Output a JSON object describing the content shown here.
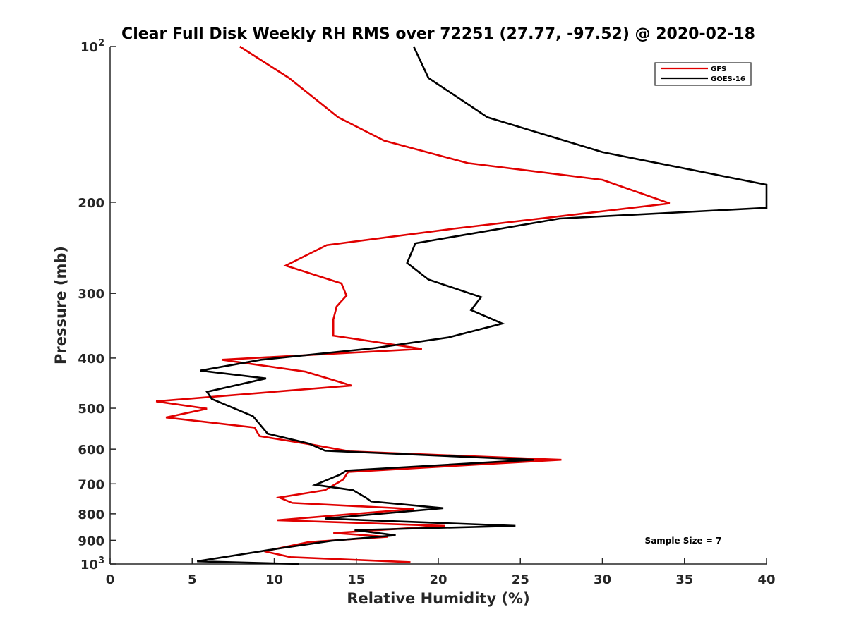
{
  "chart_data": {
    "type": "line",
    "title": "Clear Full Disk Weekly RH RMS over 72251 (27.77, -97.52) @ 2020-02-18",
    "xlabel": "Relative Humidity (%)",
    "ylabel": "Pressure (mb)",
    "xlim": [
      0,
      40
    ],
    "ylim": [
      100,
      1000
    ],
    "y_scale": "log",
    "y_reversed": true,
    "grid": false,
    "legend_position": "top-right",
    "x_ticks": [
      "0",
      "5",
      "10",
      "15",
      "20",
      "25",
      "30",
      "35",
      "40"
    ],
    "y_ticks": [
      {
        "value": 100,
        "base": "10",
        "exp": "2"
      },
      {
        "value": 200,
        "label": "200"
      },
      {
        "value": 300,
        "label": "300"
      },
      {
        "value": 400,
        "label": "400"
      },
      {
        "value": 500,
        "label": "500"
      },
      {
        "value": 600,
        "label": "600"
      },
      {
        "value": 700,
        "label": "700"
      },
      {
        "value": 800,
        "label": "800"
      },
      {
        "value": 900,
        "label": "900"
      },
      {
        "value": 1000,
        "base": "10",
        "exp": "3"
      }
    ],
    "annotation": "Sample Size = 7",
    "series": [
      {
        "name": "GFS",
        "color": "#e00000",
        "points": [
          [
            7.9,
            100
          ],
          [
            10.9,
            115
          ],
          [
            13.9,
            137
          ],
          [
            16.7,
            152
          ],
          [
            21.8,
            168
          ],
          [
            30,
            181
          ],
          [
            34.1,
            201
          ],
          [
            20.9,
            225
          ],
          [
            13.2,
            242
          ],
          [
            10.7,
            265
          ],
          [
            14.1,
            287
          ],
          [
            14.4,
            303
          ],
          [
            13.8,
            318
          ],
          [
            13.6,
            337
          ],
          [
            13.6,
            362
          ],
          [
            19.0,
            384
          ],
          [
            6.8,
            403
          ],
          [
            11.9,
            425
          ],
          [
            14.7,
            452
          ],
          [
            2.8,
            485
          ],
          [
            5.9,
            501
          ],
          [
            3.4,
            521
          ],
          [
            8.8,
            545
          ],
          [
            9.1,
            566
          ],
          [
            12.3,
            588
          ],
          [
            14.6,
            606
          ],
          [
            27.5,
            629
          ],
          [
            14.5,
            664
          ],
          [
            14.2,
            687
          ],
          [
            13.1,
            720
          ],
          [
            10.3,
            744
          ],
          [
            11.1,
            762
          ],
          [
            18.5,
            783
          ],
          [
            10.2,
            823
          ],
          [
            20.4,
            844
          ],
          [
            13.6,
            871
          ],
          [
            16.9,
            886
          ],
          [
            12.1,
            907
          ],
          [
            9.4,
            945
          ],
          [
            11.0,
            970
          ],
          [
            18.3,
            992
          ]
        ]
      },
      {
        "name": "GOES-16",
        "color": "#000000",
        "points": [
          [
            18.5,
            100
          ],
          [
            19.4,
            115
          ],
          [
            23.0,
            137
          ],
          [
            30.0,
            160
          ],
          [
            40.0,
            185
          ],
          [
            40.0,
            205
          ],
          [
            27.4,
            215
          ],
          [
            18.6,
            240
          ],
          [
            18.1,
            262
          ],
          [
            19.4,
            282
          ],
          [
            22.6,
            305
          ],
          [
            22.0,
            323
          ],
          [
            23.9,
            343
          ],
          [
            20.6,
            365
          ],
          [
            16.0,
            383
          ],
          [
            9.2,
            403
          ],
          [
            5.5,
            423
          ],
          [
            9.5,
            438
          ],
          [
            5.9,
            465
          ],
          [
            6.2,
            480
          ],
          [
            8.7,
            518
          ],
          [
            9.6,
            560
          ],
          [
            12.1,
            585
          ],
          [
            13.1,
            604
          ],
          [
            25.8,
            629
          ],
          [
            14.4,
            660
          ],
          [
            14.0,
            672
          ],
          [
            12.5,
            703
          ],
          [
            14.8,
            720
          ],
          [
            15.6,
            745
          ],
          [
            15.9,
            757
          ],
          [
            20.3,
            780
          ],
          [
            13.1,
            817
          ],
          [
            24.7,
            844
          ],
          [
            14.9,
            860
          ],
          [
            17.4,
            880
          ],
          [
            13.5,
            902
          ],
          [
            10.1,
            935
          ],
          [
            8.1,
            957
          ],
          [
            5.3,
            988
          ],
          [
            11.5,
            1000
          ]
        ]
      }
    ]
  }
}
